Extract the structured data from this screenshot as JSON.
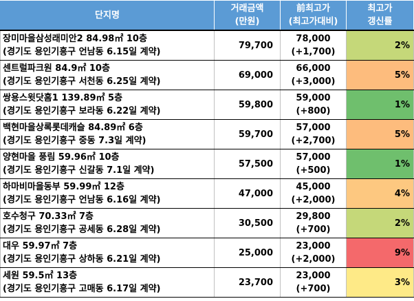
{
  "header": {
    "name": "단지명",
    "price": [
      "거래금액",
      "(만원)"
    ],
    "prev": [
      "前최고가",
      "(최고가대비)"
    ],
    "rate": [
      "최고가",
      "갱신률"
    ]
  },
  "colors": {
    "header_bg": "#5b9bd5",
    "rate_1": "#70c06e",
    "rate_2": "#c5d879",
    "rate_3": "#fde98a",
    "rate_4": "#fdc17f",
    "rate_5": "#fdb97c",
    "rate_9": "#f4696b"
  },
  "rows": [
    {
      "name": "장미마을삼성래미안2 84.98㎡ 10층",
      "location": "(경기도 용인기흥구 언남동 6.15일 계약)",
      "price": "79,700",
      "prev_high": "78,000",
      "diff": "(+1,700)",
      "rate": "2%",
      "rate_color": "#c5d879"
    },
    {
      "name": "센트럴파크원 84.9㎡ 10층",
      "location": "(경기도 용인기흥구 서천동 6.25일 계약)",
      "price": "69,000",
      "prev_high": "66,000",
      "diff": "(+3,000)",
      "rate": "5%",
      "rate_color": "#fdbc7d"
    },
    {
      "name": "쌍용스윗닷홈1 139.89㎡ 5층",
      "location": "(경기도 용인기흥구 보라동 6.22일 계약)",
      "price": "59,800",
      "prev_high": "59,000",
      "diff": "(+800)",
      "rate": "1%",
      "rate_color": "#6fbf6d"
    },
    {
      "name": "백현마을상록롯데캐슬 84.89㎡ 6층",
      "location": "(경기도 용인기흥구 중동 7.3일 계약)",
      "price": "59,700",
      "prev_high": "57,000",
      "diff": "(+2,700)",
      "rate": "5%",
      "rate_color": "#fdbc7d"
    },
    {
      "name": "양현마을 풍림 59.96㎡ 10층",
      "location": "(경기도 용인기흥구 신갈동 7.1일 계약)",
      "price": "57,500",
      "prev_high": "57,000",
      "diff": "(+500)",
      "rate": "1%",
      "rate_color": "#6fbf6d"
    },
    {
      "name": "하마비마을동부 59.99㎡ 12층",
      "location": "(경기도 용인기흥구 언남동 6.16일 계약)",
      "price": "47,000",
      "prev_high": "45,000",
      "diff": "(+2,000)",
      "rate": "4%",
      "rate_color": "#fdc880"
    },
    {
      "name": "호수청구 70.33㎡ 7층",
      "location": "(경기도 용인기흥구 공세동 6.28일 계약)",
      "price": "30,500",
      "prev_high": "29,800",
      "diff": "(+700)",
      "rate": "2%",
      "rate_color": "#c5d879"
    },
    {
      "name": "대우 59.97㎡ 7층",
      "location": "(경기도 용인기흥구 상하동 6.21일 계약)",
      "price": "25,000",
      "prev_high": "23,000",
      "diff": "(+2,000)",
      "rate": "9%",
      "rate_color": "#f4696b"
    },
    {
      "name": "세원 59.5㎡ 13층",
      "location": "(경기도 용인기흥구 고매동 6.17일 계약)",
      "price": "23,700",
      "prev_high": "23,000",
      "diff": "(+700)",
      "rate": "3%",
      "rate_color": "#feea87"
    }
  ]
}
